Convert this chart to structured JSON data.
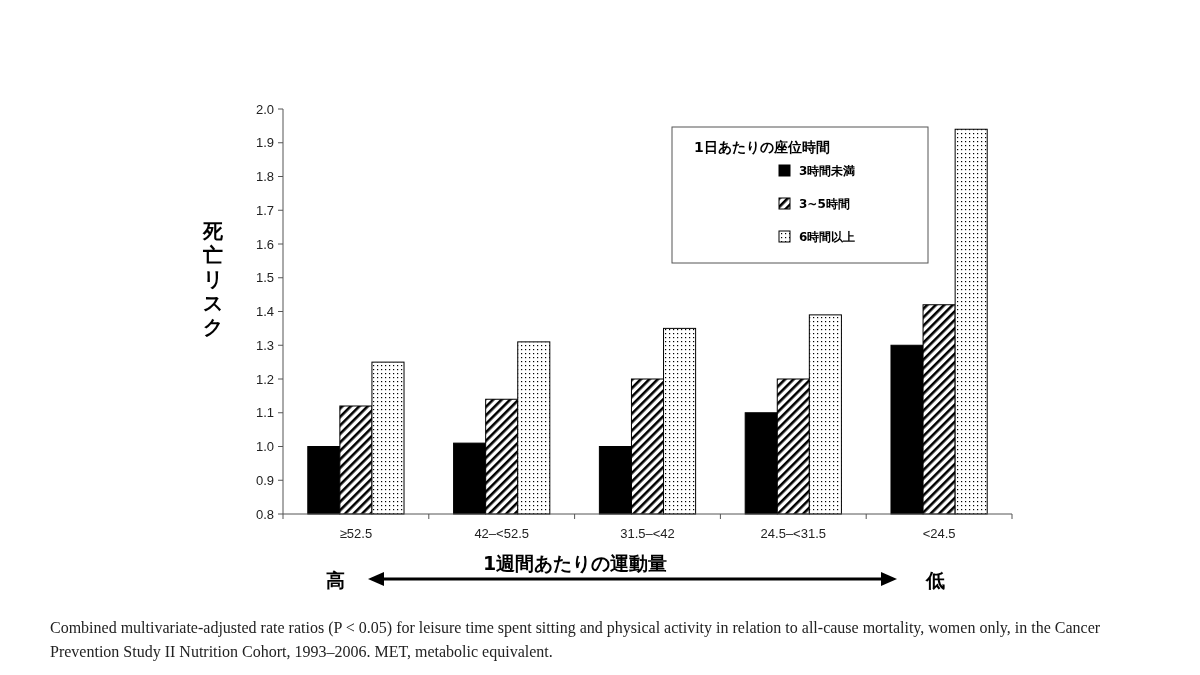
{
  "chart_data": {
    "type": "bar",
    "xlabel": "1週間あたりの運動量",
    "ylabel": "死亡リスク",
    "legend_title": "1日あたりの座位時間",
    "categories": [
      "≥52.5",
      "42–<52.5",
      "31.5–<42",
      "24.5–<31.5",
      "<24.5"
    ],
    "series": [
      {
        "name": "3時間未満",
        "color": "#000000",
        "values": [
          1.0,
          1.01,
          1.0,
          1.1,
          1.3
        ]
      },
      {
        "name": "3~5時間",
        "color": "#000000",
        "values": [
          1.12,
          1.14,
          1.2,
          1.2,
          1.42
        ]
      },
      {
        "name": "6時間以上",
        "color": "#000000",
        "values": [
          1.25,
          1.31,
          1.35,
          1.39,
          1.94
        ]
      }
    ],
    "ylim": [
      0.8,
      2.0
    ],
    "yticks": [
      0.8,
      0.9,
      {
        "value": 1,
        "label": "1.0"
      },
      1.1,
      1.2,
      1.3,
      1.4,
      1.5,
      1.6,
      1.7,
      1.8,
      1.9,
      {
        "value": 2,
        "label": "2.0"
      }
    ],
    "grid": false,
    "legend": "top right",
    "annotations": [
      "高",
      "低",
      "Combined multivariate-adjusted rate ratios (P < 0.05) for leisure time spent sitting and physical activity in relation to all-cause mortality, women only, in the Cancer Prevention Study II Nutrition Cohort, 1993–2006. MET, metabolic equivalent."
    ]
  }
}
